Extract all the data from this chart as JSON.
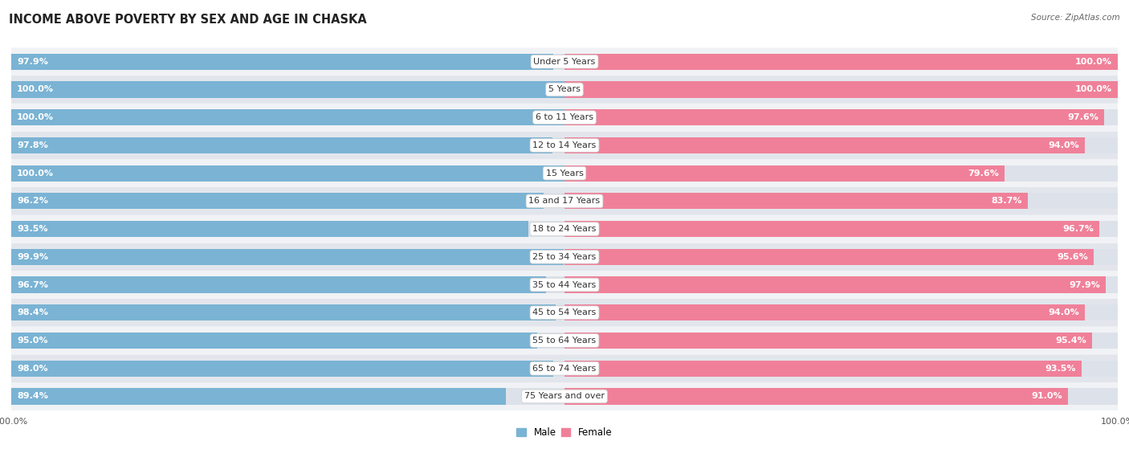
{
  "title": "INCOME ABOVE POVERTY BY SEX AND AGE IN CHASKA",
  "source": "Source: ZipAtlas.com",
  "categories": [
    "Under 5 Years",
    "5 Years",
    "6 to 11 Years",
    "12 to 14 Years",
    "15 Years",
    "16 and 17 Years",
    "18 to 24 Years",
    "25 to 34 Years",
    "35 to 44 Years",
    "45 to 54 Years",
    "55 to 64 Years",
    "65 to 74 Years",
    "75 Years and over"
  ],
  "male_values": [
    97.9,
    100.0,
    100.0,
    97.8,
    100.0,
    96.2,
    93.5,
    99.9,
    96.7,
    98.4,
    95.0,
    98.0,
    89.4
  ],
  "female_values": [
    100.0,
    100.0,
    97.6,
    94.0,
    79.6,
    83.7,
    96.7,
    95.6,
    97.9,
    94.0,
    95.4,
    93.5,
    91.0
  ],
  "male_color": "#7ab3d4",
  "female_color": "#f08099",
  "male_label": "Male",
  "female_label": "Female",
  "bg_color": "#ffffff",
  "row_light": "#f0f2f5",
  "row_dark": "#e2e6ec",
  "track_color": "#dde2ea",
  "max_val": 100.0,
  "title_fontsize": 10.5,
  "label_fontsize": 8,
  "value_fontsize": 8,
  "tick_fontsize": 8,
  "source_fontsize": 7.5
}
